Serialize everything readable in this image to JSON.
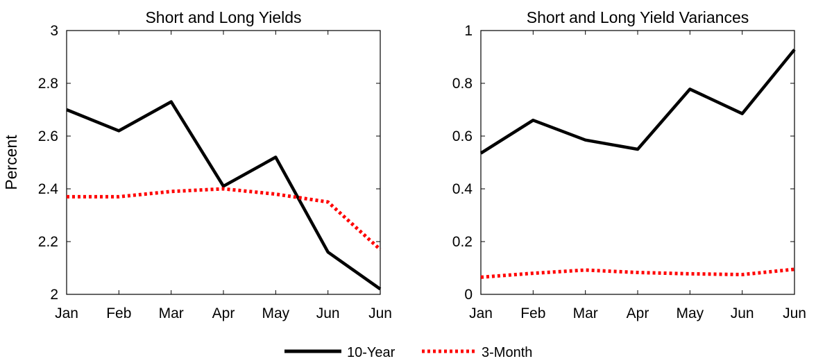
{
  "chart_data": [
    {
      "type": "line",
      "title": "Short and Long Yields",
      "ylabel": "Percent",
      "xlabel": "",
      "categories": [
        "Jan",
        "Feb",
        "Mar",
        "Apr",
        "May",
        "Jun",
        "Jun"
      ],
      "ylim": [
        2,
        3
      ],
      "yticks": [
        "2",
        "2.2",
        "2.4",
        "2.6",
        "2.8",
        "3"
      ],
      "grid": false,
      "series": [
        {
          "name": "10-Year",
          "values": [
            2.7,
            2.62,
            2.73,
            2.41,
            2.52,
            2.16,
            2.02
          ]
        },
        {
          "name": "3-Month",
          "values": [
            2.37,
            2.37,
            2.39,
            2.4,
            2.38,
            2.35,
            2.17
          ]
        }
      ]
    },
    {
      "type": "line",
      "title": "Short and Long Yield Variances",
      "ylabel": "",
      "xlabel": "",
      "categories": [
        "Jan",
        "Feb",
        "Mar",
        "Apr",
        "May",
        "Jun",
        "Jun"
      ],
      "ylim": [
        0,
        1
      ],
      "yticks": [
        "0",
        "0.2",
        "0.4",
        "0.6",
        "0.8",
        "1"
      ],
      "grid": false,
      "series": [
        {
          "name": "10-Year",
          "values": [
            0.535,
            0.66,
            0.585,
            0.55,
            0.778,
            0.685,
            0.928
          ]
        },
        {
          "name": "3-Month",
          "values": [
            0.065,
            0.08,
            0.092,
            0.083,
            0.078,
            0.075,
            0.095
          ]
        }
      ]
    }
  ],
  "legend": {
    "position": "bottom-center",
    "items": [
      {
        "label": "10-Year",
        "style": "solid",
        "color": "#000000"
      },
      {
        "label": "3-Month",
        "style": "dotted",
        "color": "#ff0000"
      }
    ]
  }
}
